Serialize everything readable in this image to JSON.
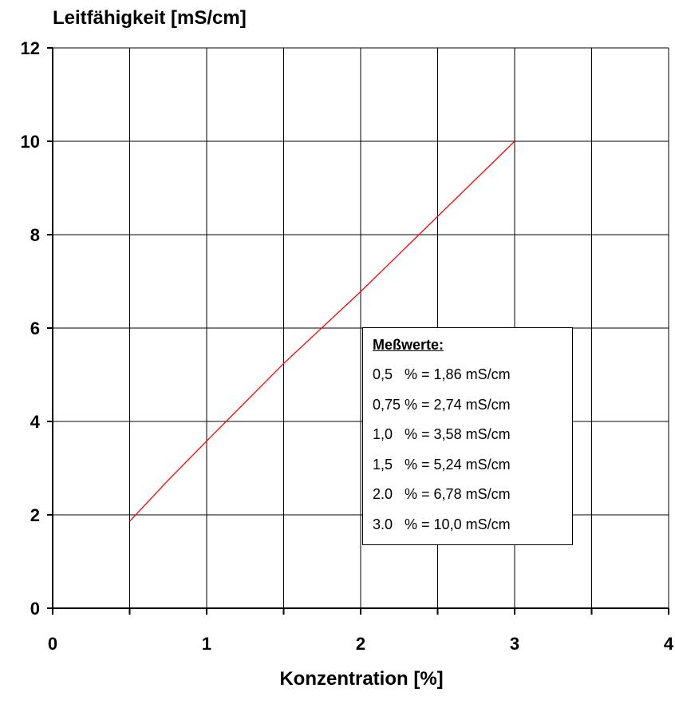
{
  "chart_data": {
    "type": "line",
    "ylabel": "Leitfähigkeit [mS/cm]",
    "xlabel": "Konzentration [%]",
    "xlim": [
      0,
      4
    ],
    "ylim": [
      0,
      12
    ],
    "x_ticks": [
      "0",
      "1",
      "2",
      "3",
      "4"
    ],
    "y_ticks": [
      "0",
      "2",
      "4",
      "6",
      "8",
      "10",
      "12"
    ],
    "grid": true,
    "line_color": "#ff0000",
    "series": [
      {
        "x": [
          0.5,
          0.75,
          1.0,
          1.5,
          2.0,
          3.0
        ],
        "values": [
          1.86,
          2.74,
          3.58,
          5.24,
          6.78,
          10.0
        ]
      }
    ],
    "legend": {
      "title": "Meßwerte:",
      "entries": [
        "0,5   % = 1,86 mS/cm",
        "0,75 % = 2,74 mS/cm",
        "1,0   % = 3,58 mS/cm",
        "1,5   % = 5,24 mS/cm",
        "2.0   % = 6,78 mS/cm",
        "3.0   % = 10,0 mS/cm"
      ]
    }
  }
}
